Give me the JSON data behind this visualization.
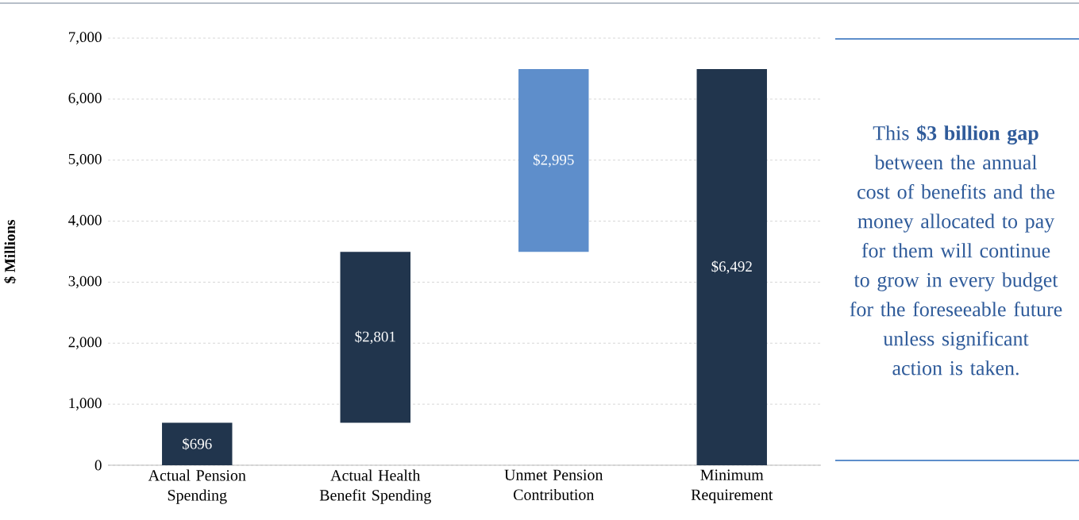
{
  "chart_data": {
    "type": "bar",
    "categories": [
      "Actual Pension Spending",
      "Actual Health Benefit Spending",
      "Unmet Pension Contribution",
      "Minimum Requirement"
    ],
    "values": [
      696,
      2801,
      2995,
      6492
    ],
    "base": [
      0,
      696,
      3497,
      0
    ],
    "colors": [
      "#21354d",
      "#21354d",
      "#5e8ecb",
      "#21354d"
    ],
    "value_labels": [
      "$696",
      "$2,801",
      "$2,995",
      "$6,492"
    ],
    "ylabel": "$ Millions",
    "ylim": [
      0,
      7000
    ],
    "yticks": [
      0,
      {
        "value": 1000,
        "label": "1,000"
      },
      {
        "value": 2000,
        "label": "2,000"
      },
      {
        "value": 3000,
        "label": "3,000"
      },
      {
        "value": 4000,
        "label": "4,000"
      },
      {
        "value": 5000,
        "label": "5,000"
      },
      {
        "value": 6000,
        "label": "6,000"
      },
      {
        "value": 7000,
        "label": "7,000"
      }
    ],
    "grid": "y",
    "annotations": [
      "This **$3 billion gap** between the annual cost of benefits and the money allocated to pay for them will continue to grow in every budget for the foreseeable future unless significant action is taken."
    ]
  }
}
